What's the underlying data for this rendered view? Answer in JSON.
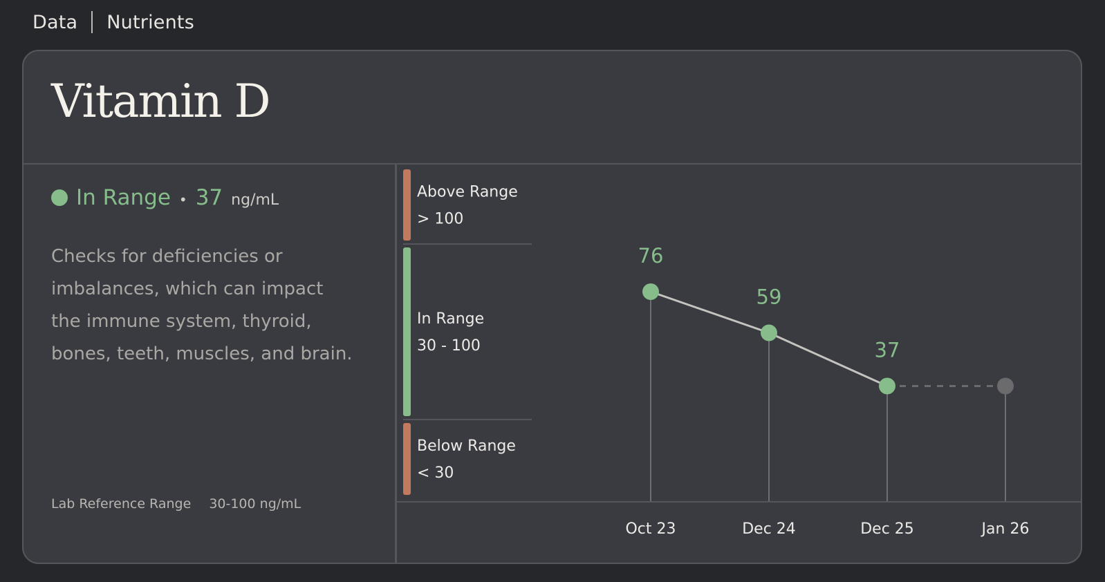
{
  "breadcrumb": {
    "items": [
      "Data",
      "Nutrients"
    ]
  },
  "card": {
    "title": "Vitamin D",
    "status": {
      "label": "In Range",
      "separator": "•",
      "value": "37",
      "unit": "ng/mL",
      "color": "#86bd8b"
    },
    "description": "Checks for deficiencies or imbalances, which can impact the immune system, thyroid, bones, teeth, muscles, and brain.",
    "reference": {
      "label": "Lab Reference Range",
      "value": "30-100 ng/mL"
    }
  },
  "chart_data": {
    "type": "line",
    "unit": "ng/mL",
    "ranges": [
      {
        "name": "Above Range",
        "label": "> 100",
        "color": "#c17a5e"
      },
      {
        "name": "In Range",
        "label": "30 - 100",
        "color": "#86bd8b"
      },
      {
        "name": "Below Range",
        "label": "< 30",
        "color": "#c17a5e"
      }
    ],
    "categories": [
      "Oct 23",
      "Dec 24",
      "Dec 25",
      "Jan 26"
    ],
    "series": [
      {
        "values": [
          76,
          59,
          37,
          null
        ],
        "color": "#86bd8b"
      }
    ],
    "data_labels": [
      "76",
      "59",
      "37"
    ],
    "projected_point": {
      "category": "Jan 26",
      "value": 37,
      "color": "#6b6b6e"
    },
    "colors": {
      "line": "#c4c3c0",
      "gridline": "#6d6e72",
      "dashed": "#6b6b6e"
    }
  }
}
